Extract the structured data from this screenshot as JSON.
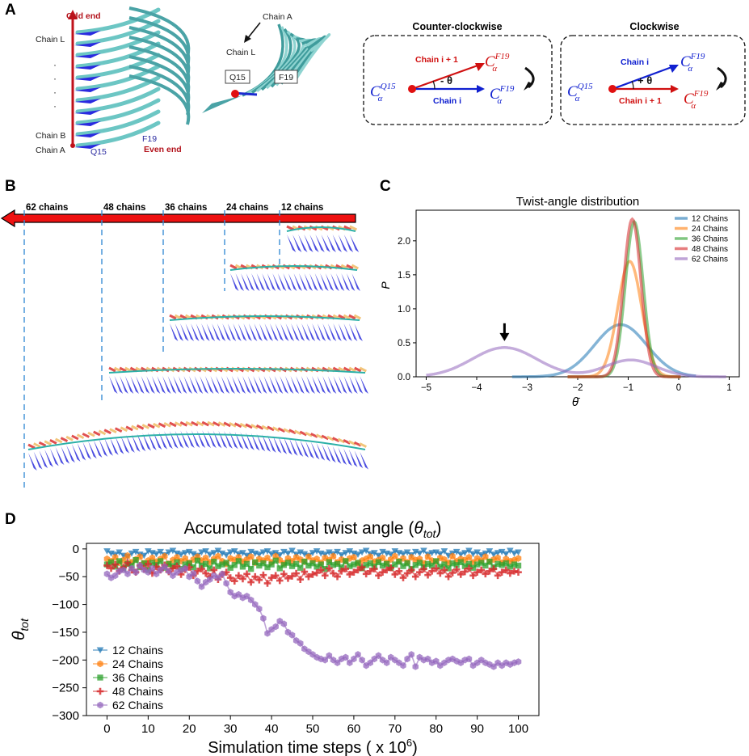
{
  "figure": {
    "panel_labels": [
      "A",
      "B",
      "C",
      "D"
    ]
  },
  "panel_a": {
    "left_labels": {
      "odd_end": "Odd end",
      "even_end": "Even end",
      "chain_l": "Chain L",
      "chain_b": "Chain B",
      "chain_a": "Chain A",
      "dots": "·",
      "q15": "Q15",
      "f19": "F19"
    },
    "middle_labels": {
      "chain_a": "Chain A",
      "chain_l": "Chain L",
      "q15": "Q15",
      "f19": "F19"
    },
    "ccw_box": {
      "title": "Counter-clockwise",
      "chain_upper": "Chain i + 1",
      "chain_lower": "Chain i",
      "angle": "- θ",
      "origin_sub": "Q15",
      "tip_sub": "F19",
      "c_alpha": "C",
      "alpha": "α"
    },
    "cw_box": {
      "title": "Clockwise",
      "chain_upper": "Chain i",
      "chain_lower": "Chain i + 1",
      "angle": "+ θ",
      "origin_sub": "Q15",
      "tip_sub": "F19",
      "c_alpha": "C",
      "alpha": "α"
    }
  },
  "panel_b": {
    "chain_labels": [
      "62 chains",
      "48 chains",
      "36 chains",
      "24 chains",
      "12 chains"
    ]
  },
  "chart_data": [
    {
      "id": "C",
      "type": "line",
      "title": "Twist-angle distribution",
      "xlabel": "θ̄",
      "ylabel": "P",
      "xlim": [
        -5.2,
        1.2
      ],
      "ylim": [
        0,
        2.45
      ],
      "xticks": [
        -5,
        -4,
        -3,
        -2,
        -1,
        0,
        1
      ],
      "xtick_labels": [
        "−5",
        "−4",
        "−3",
        "−2",
        "−1",
        "0",
        "1"
      ],
      "yticks": [
        0,
        0.5,
        1,
        1.5,
        2
      ],
      "ytick_labels": [
        "0.0",
        "0.5",
        "1.0",
        "1.5",
        "2.0"
      ],
      "legend_position": "top-right",
      "annotation": "arrow marking the 62-chain peak near θ̄ = −3.45",
      "series": [
        {
          "name": "12 Chains",
          "color": "#1f77b4",
          "components": [
            {
              "w": 1.0,
              "mu": -1.15,
              "sigma": 0.52
            }
          ]
        },
        {
          "name": "24 Chains",
          "color": "#ff7f0e",
          "components": [
            {
              "w": 1.0,
              "mu": -0.97,
              "sigma": 0.235
            }
          ]
        },
        {
          "name": "36 Chains",
          "color": "#2ca02c",
          "components": [
            {
              "w": 1.0,
              "mu": -0.88,
              "sigma": 0.175
            }
          ]
        },
        {
          "name": "48 Chains",
          "color": "#d62728",
          "components": [
            {
              "w": 1.0,
              "mu": -0.92,
              "sigma": 0.172
            }
          ]
        },
        {
          "name": "62 Chains",
          "color": "#9467bd",
          "components": [
            {
              "w": 0.69,
              "mu": -3.45,
              "sigma": 0.64
            },
            {
              "w": 0.31,
              "mu": -0.95,
              "sigma": 0.5
            }
          ]
        }
      ]
    },
    {
      "id": "D",
      "type": "line",
      "title_main": "Accumulated total twist angle (",
      "title_sym": "θ",
      "title_sub": "tot",
      "title_end": ")",
      "xlabel_main": "Simulation time steps ( x 10",
      "xlabel_sup": "6",
      "xlabel_end": ")",
      "ylabel_sym": "θ",
      "ylabel_sub": "tot",
      "xlim": [
        -5,
        105
      ],
      "ylim": [
        -300,
        10
      ],
      "xticks": [
        0,
        10,
        20,
        30,
        40,
        50,
        60,
        70,
        80,
        90,
        100
      ],
      "yticks": [
        0,
        -50,
        -100,
        -150,
        -200,
        -250,
        -300
      ],
      "ytick_labels": [
        "0",
        "−50",
        "−100",
        "−150",
        "−200",
        "−250",
        "−300"
      ],
      "legend_position": "bottom-left",
      "x": [
        0,
        1,
        2,
        3,
        4,
        5,
        6,
        7,
        8,
        9,
        10,
        11,
        12,
        13,
        14,
        15,
        16,
        17,
        18,
        19,
        20,
        21,
        22,
        23,
        24,
        25,
        26,
        27,
        28,
        29,
        30,
        31,
        32,
        33,
        34,
        35,
        36,
        37,
        38,
        39,
        40,
        41,
        42,
        43,
        44,
        45,
        46,
        47,
        48,
        49,
        50,
        51,
        52,
        53,
        54,
        55,
        56,
        57,
        58,
        59,
        60,
        61,
        62,
        63,
        64,
        65,
        66,
        67,
        68,
        69,
        70,
        71,
        72,
        73,
        74,
        75,
        76,
        77,
        78,
        79,
        80,
        81,
        82,
        83,
        84,
        85,
        86,
        87,
        88,
        89,
        90,
        91,
        92,
        93,
        94,
        95,
        96,
        97,
        98,
        99,
        100
      ],
      "series": [
        {
          "name": "12 Chains",
          "color": "#1f77b4",
          "marker": "triangle-down",
          "values": [
            -4,
            -8,
            -10,
            -6,
            -12,
            -14,
            -8,
            -5,
            -10,
            -12,
            -4,
            -7,
            -9,
            -5,
            -11,
            -6,
            -3,
            -8,
            -10,
            -7,
            -5,
            -9,
            -12,
            -6,
            -4,
            -10,
            -7,
            -3,
            -8,
            -11,
            -6,
            -4,
            -9,
            -7,
            -12,
            -5,
            -8,
            -10,
            -6,
            -4,
            -9,
            -7,
            -11,
            -5,
            -8,
            -3,
            -10,
            -6,
            -9,
            -12,
            -7,
            -4,
            -8,
            -10,
            -6,
            -9,
            -5,
            -11,
            -7,
            -4,
            -8,
            -10,
            -6,
            -3,
            -9,
            -7,
            -12,
            -5,
            -8,
            -10,
            -4,
            -7,
            -9,
            -6,
            -11,
            -5,
            -8,
            -3,
            -10,
            -7,
            -6,
            -9,
            -4,
            -12,
            -8,
            -5,
            -10,
            -7,
            -3,
            -9,
            -6,
            -11,
            -8,
            -4,
            -10,
            -7,
            -5,
            -9,
            -3,
            -8,
            -6
          ]
        },
        {
          "name": "24 Chains",
          "color": "#ff7f0e",
          "marker": "hexagon",
          "values": [
            -18,
            -22,
            -15,
            -25,
            -20,
            -12,
            -24,
            -19,
            -14,
            -26,
            -21,
            -16,
            -23,
            -18,
            -13,
            -27,
            -20,
            -15,
            -22,
            -17,
            -25,
            -19,
            -14,
            -21,
            -16,
            -24,
            -18,
            -13,
            -22,
            -27,
            -17,
            -20,
            -15,
            -23,
            -19,
            -14,
            -25,
            -18,
            -21,
            -16,
            -24,
            -13,
            -20,
            -26,
            -17,
            -22,
            -15,
            -19,
            -23,
            -14,
            -21,
            -18,
            -25,
            -16,
            -20,
            -13,
            -24,
            -19,
            -22,
            -17,
            -15,
            -26,
            -21,
            -18,
            -14,
            -23,
            -20,
            -16,
            -25,
            -19,
            -13,
            -22,
            -17,
            -24,
            -15,
            -20,
            -18,
            -26,
            -14,
            -21,
            -23,
            -16,
            -19,
            -25,
            -13,
            -22,
            -18,
            -20,
            -15,
            -24,
            -17,
            -21,
            -14,
            -23,
            -19,
            -16,
            -25,
            -18,
            -22,
            -20,
            -17
          ]
        },
        {
          "name": "36 Chains",
          "color": "#2ca02c",
          "marker": "square",
          "values": [
            -28,
            -24,
            -32,
            -22,
            -35,
            -27,
            -30,
            -20,
            -33,
            -26,
            -38,
            -25,
            -29,
            -22,
            -34,
            -27,
            -31,
            -24,
            -36,
            -28,
            -26,
            -33,
            -21,
            -30,
            -27,
            -35,
            -23,
            -31,
            -28,
            -25,
            -34,
            -29,
            -22,
            -32,
            -27,
            -36,
            -24,
            -30,
            -26,
            -33,
            -28,
            -21,
            -35,
            -29,
            -25,
            -31,
            -27,
            -34,
            -23,
            -30,
            -26,
            -32,
            -28,
            -36,
            -24,
            -29,
            -27,
            -33,
            -22,
            -31,
            -28,
            -25,
            -35,
            -29,
            -26,
            -32,
            -24,
            -30,
            -27,
            -34,
            -28,
            -23,
            -31,
            -26,
            -36,
            -29,
            -25,
            -33,
            -27,
            -30,
            -22,
            -32,
            -28,
            -35,
            -26,
            -29,
            -24,
            -31,
            -27,
            -34,
            -28,
            -25,
            -30,
            -23,
            -33,
            -27,
            -29,
            -26,
            -32,
            -28,
            -30
          ]
        },
        {
          "name": "48 Chains",
          "color": "#d62728",
          "marker": "plus",
          "values": [
            -30,
            -35,
            -28,
            -40,
            -33,
            -25,
            -38,
            -42,
            -30,
            -36,
            -27,
            -44,
            -32,
            -38,
            -29,
            -41,
            -35,
            -31,
            -46,
            -37,
            -33,
            -48,
            -40,
            -36,
            -44,
            -50,
            -38,
            -55,
            -46,
            -42,
            -52,
            -58,
            -48,
            -54,
            -45,
            -60,
            -50,
            -56,
            -47,
            -62,
            -52,
            -48,
            -57,
            -45,
            -53,
            -49,
            -44,
            -55,
            -41,
            -50,
            -46,
            -43,
            -38,
            -48,
            -35,
            -44,
            -50,
            -40,
            -36,
            -46,
            -42,
            -38,
            -33,
            -45,
            -40,
            -36,
            -48,
            -42,
            -38,
            -34,
            -46,
            -40,
            -52,
            -44,
            -38,
            -50,
            -42,
            -36,
            -47,
            -40,
            -35,
            -44,
            -38,
            -50,
            -43,
            -37,
            -46,
            -41,
            -35,
            -48,
            -42,
            -38,
            -45,
            -40,
            -36,
            -48,
            -42,
            -38,
            -44,
            -40,
            -42
          ]
        },
        {
          "name": "62 Chains",
          "color": "#9467bd",
          "marker": "hexagon",
          "values": [
            -45,
            -52,
            -48,
            -40,
            -38,
            -45,
            -35,
            -42,
            -30,
            -38,
            -42,
            -35,
            -45,
            -38,
            -32,
            -40,
            -48,
            -42,
            -38,
            -35,
            -50,
            -44,
            -58,
            -68,
            -60,
            -55,
            -48,
            -52,
            -45,
            -62,
            -78,
            -85,
            -82,
            -88,
            -85,
            -92,
            -100,
            -108,
            -125,
            -152,
            -145,
            -140,
            -130,
            -135,
            -150,
            -155,
            -165,
            -170,
            -180,
            -185,
            -190,
            -195,
            -198,
            -200,
            -192,
            -200,
            -205,
            -198,
            -195,
            -205,
            -198,
            -190,
            -200,
            -210,
            -205,
            -198,
            -192,
            -200,
            -205,
            -195,
            -200,
            -205,
            -210,
            -198,
            -190,
            -212,
            -195,
            -200,
            -198,
            -205,
            -202,
            -210,
            -205,
            -200,
            -198,
            -202,
            -205,
            -200,
            -198,
            -210,
            -205,
            -200,
            -205,
            -208,
            -212,
            -205,
            -210,
            -205,
            -208,
            -205,
            -203
          ]
        }
      ]
    }
  ]
}
